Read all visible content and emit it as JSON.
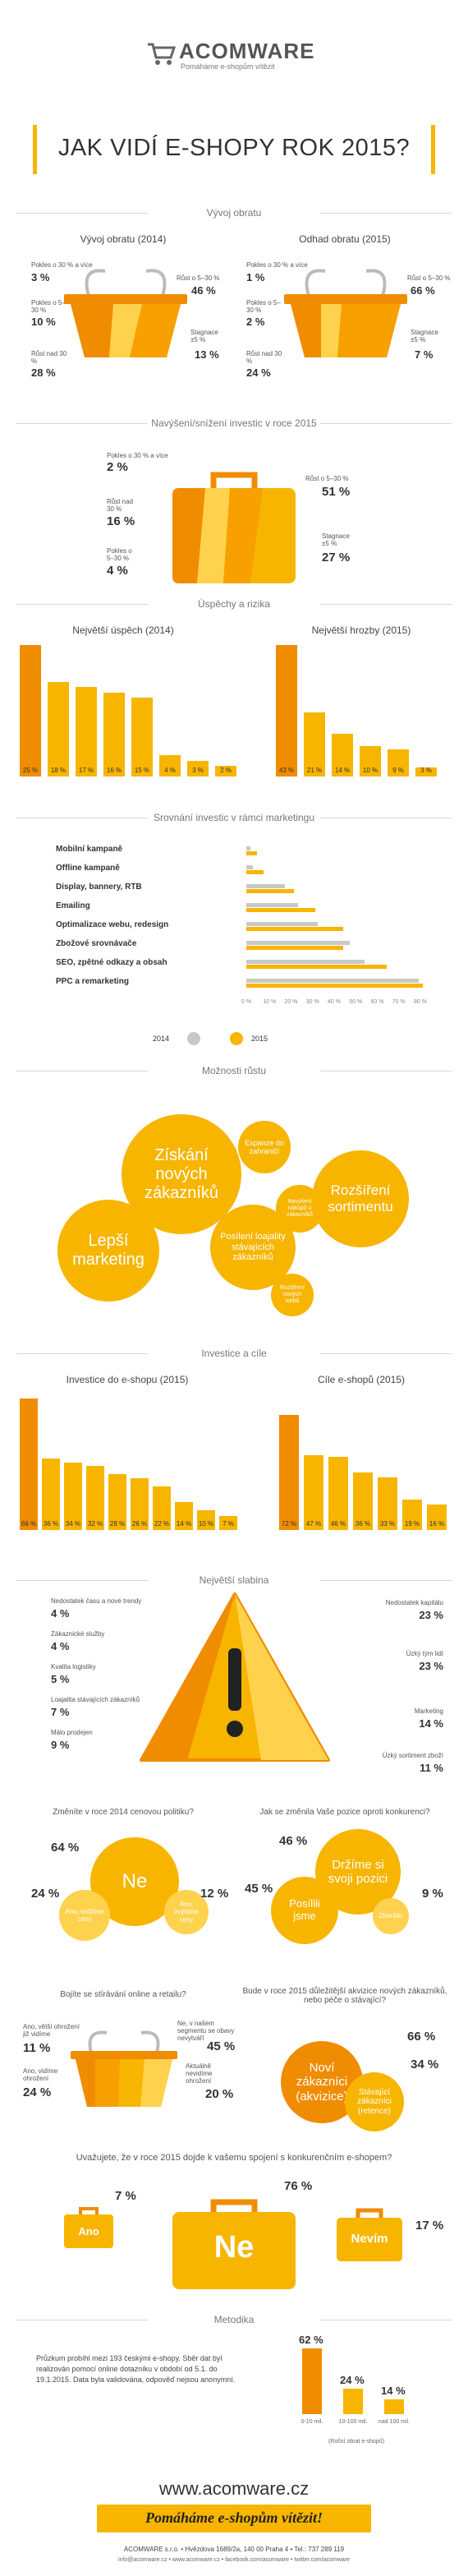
{
  "header": {
    "brand": "ACOMWARE",
    "tagline": "Pomáháme e-shopům vítězit",
    "main_title": "JAK VIDÍ E-SHOPY ROK 2015?"
  },
  "colors": {
    "accent": "#f7b500",
    "accent_dark": "#f08c00",
    "accent_light": "#ffd24d",
    "gray": "#c8c8c8"
  },
  "obrat": {
    "section_title": "Vývoj obratu",
    "left": {
      "title": "Vývoj obratu (2014)",
      "labels": [
        {
          "text": "Pokles o 30 % a více",
          "value": "3 %"
        },
        {
          "text": "Pokles o 5–30 %",
          "value": "10 %"
        },
        {
          "text": "Růst nad 30 %",
          "value": "28 %"
        },
        {
          "text": "Růst o 5–30 %",
          "value": "46 %"
        },
        {
          "text": "Stagnace ±5 %",
          "value": "13 %"
        }
      ]
    },
    "right": {
      "title": "Odhad obratu (2015)",
      "labels": [
        {
          "text": "Pokles o 30 % a více",
          "value": "1 %"
        },
        {
          "text": "Pokles o 5–30 %",
          "value": "2 %"
        },
        {
          "text": "Růst nad 30 %",
          "value": "24 %"
        },
        {
          "text": "Růst o 5–30 %",
          "value": "66 %"
        },
        {
          "text": "Stagnace ±5 %",
          "value": "7 %"
        }
      ]
    }
  },
  "investice_change": {
    "section_title": "Navýšení/snížení investic v roce 2015",
    "labels": [
      {
        "text": "Pokles o 30 % a více",
        "value": "2 %"
      },
      {
        "text": "Růst nad 30 %",
        "value": "16 %"
      },
      {
        "text": "Pokles o 5–30 %",
        "value": "4 %"
      },
      {
        "text": "Růst o 5–30 %",
        "value": "51 %"
      },
      {
        "text": "Stagnace ±5 %",
        "value": "27 %"
      }
    ]
  },
  "uspechy": {
    "section_title": "Úspěchy a rizika",
    "left_title": "Největší úspěch (2014)",
    "right_title": "Největší hrozby (2015)",
    "left_values": [
      "25 %",
      "18 %",
      "17 %",
      "16 %",
      "15 %",
      "4 %",
      "3 %",
      "2 %"
    ],
    "right_values": [
      "43 %",
      "21 %",
      "14 %",
      "10 %",
      "9 %",
      "3 %"
    ]
  },
  "marketing": {
    "section_title": "Srovnání investic v rámci marketingu",
    "rows": [
      "Mobilní kampaně",
      "Offline kampaně",
      "Display, bannery, RTB",
      "Emailing",
      "Optimalizace webu, redesign",
      "Zbožové srovnávače",
      "SEO, zpětné odkazy a obsah",
      "PPC a remarketing"
    ],
    "axis": [
      "0 %",
      "10 %",
      "20 %",
      "30 %",
      "40 %",
      "50 %",
      "60 %",
      "70 %",
      "80 %"
    ],
    "legend_2014": "2014",
    "legend_2015": "2015",
    "chart_data": {
      "type": "bar",
      "categories": [
        "Mobilní kampaně",
        "Offline kampaně",
        "Display, bannery, RTB",
        "Emailing",
        "Optimalizace webu, redesign",
        "Zbožové srovnávače",
        "SEO, zpětné odkazy a obsah",
        "PPC a remarketing"
      ],
      "series": [
        {
          "name": "2014",
          "values": [
            2,
            3,
            18,
            24,
            33,
            48,
            55,
            80
          ]
        },
        {
          "name": "2015",
          "values": [
            5,
            8,
            22,
            32,
            45,
            45,
            65,
            82
          ]
        }
      ],
      "xlim": [
        0,
        80
      ]
    }
  },
  "moznosti": {
    "section_title": "Možnosti růstu",
    "bubbles": [
      "Získání nových zákazníků",
      "Rozšíření sortimentu",
      "Lepší marketing",
      "Posílení loajality stávajících zákazníků",
      "Expanze do zahraničí",
      "Navýšení nákupů u zákazníků",
      "Rozšíření nových webů"
    ]
  },
  "cile": {
    "section_title": "Investice a cíle",
    "left_title": "Investice do e-shopu (2015)",
    "right_title": "Cíle e-shopů (2015)",
    "left_values": [
      "66 %",
      "36 %",
      "34 %",
      "32 %",
      "28 %",
      "26 %",
      "22 %",
      "14 %",
      "10 %",
      "7 %"
    ],
    "right_values": [
      "72 %",
      "47 %",
      "46 %",
      "36 %",
      "33 %",
      "19 %",
      "16 %"
    ]
  },
  "slabina": {
    "section_title": "Největší slabina",
    "left": [
      {
        "text": "Nedostatek času a nové trendy",
        "value": "4 %"
      },
      {
        "text": "Zákaznické služby",
        "value": "4 %"
      },
      {
        "text": "Kvalita logistiky",
        "value": "5 %"
      },
      {
        "text": "Loajalita stávajících zákazníků",
        "value": "7 %"
      },
      {
        "text": "Málo prodejen",
        "value": "9 %"
      }
    ],
    "right": [
      {
        "text": "Nedostatek kapitálu",
        "value": "23 %"
      },
      {
        "text": "Úzký tým lidí",
        "value": "23 %"
      },
      {
        "text": "Marketing",
        "value": "14 %"
      },
      {
        "text": "Úzký sortiment zboží",
        "value": "11 %"
      }
    ]
  },
  "q1": {
    "question": "Změníte v roce 2014 cenovou politiku?",
    "big": "Ne",
    "p_big": "64 %",
    "small_a": "Ano, snížíme ceny",
    "p_a": "24 %",
    "small_b": "Ano, zvýšíme ceny",
    "p_b": "12 %"
  },
  "q2": {
    "question": "Jak se změnila Vaše pozice oproti konkurenci?",
    "big": "Držíme si svoji pozici",
    "p_big": "46 %",
    "mid": "Posílili jsme",
    "p_mid": "45 %",
    "small": "Zhoršilo",
    "p_small": "9 %"
  },
  "q3": {
    "question": "Bojíte se stírávání online a retailu?",
    "labels": [
      {
        "text": "Ano, větší ohrožení již vidíme",
        "value": "11 %"
      },
      {
        "text": "Ano, vidíme ohrožení",
        "value": "24 %"
      },
      {
        "text": "Ne, v našem segmentu se obavy nevytváří",
        "value": "45 %"
      },
      {
        "text": "Aktuálně nevidíme ohrožení",
        "value": "20 %"
      }
    ]
  },
  "q4": {
    "question": "Bude v roce 2015 důležitější akvizice nových zákazníků, nebo péče o stávající?",
    "big": "Noví zákazníci (akvizice)",
    "p_big": "66 %",
    "small": "Stávající zákazníci (retence)",
    "p_small": "34 %"
  },
  "q5": {
    "question": "Uvažujete, že v roce 2015 dojde k vašemu spojení s konkurenčním e-shopem?",
    "a": "Ano",
    "p_a": "7 %",
    "b": "Ne",
    "p_b": "76 %",
    "c": "Nevím",
    "p_c": "17 %"
  },
  "metodika": {
    "section_title": "Metodika",
    "text": "Průzkum probíhl mezi 193 českými e-shopy. Sběr dat byl realizován pomocí online dotazníku v období od 5.1. do 19.1.2015. Data byla validována, odpověď nejsou anonymní.",
    "chart_data": {
      "type": "bar",
      "categories": [
        "0–10 mil.",
        "10–100 mil.",
        "nad 100 mil."
      ],
      "values": [
        62,
        24,
        14
      ]
    },
    "values": [
      "62 %",
      "24 %",
      "14 %"
    ],
    "caps": [
      "0-10 mil.",
      "10-100 mil.",
      "nad 100 mil."
    ],
    "caption": "(Roční obrat e-shopů)"
  },
  "footer": {
    "url": "www.acomware.cz",
    "slogan": "Pomáháme e-shopům vítězit!",
    "address": "ACOMWARE s.r.o. • Hvězdova 1689/2a, 140 00 Praha 4 • Tel.: 737 289 119",
    "links": "info@acomware.cz • www.acomware.cz • facebook.com/acomware • twitter.com/acomware"
  }
}
